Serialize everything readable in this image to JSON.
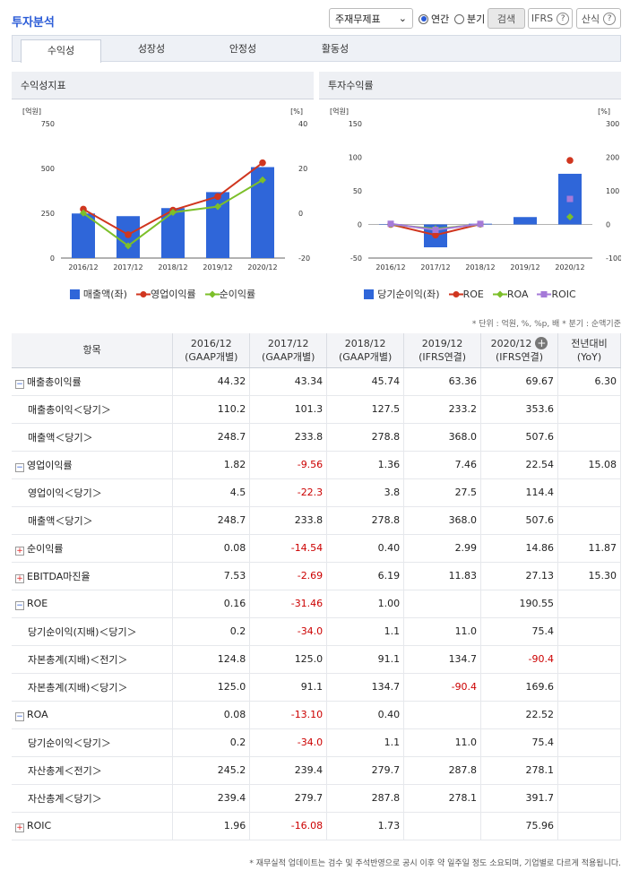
{
  "header": {
    "title": "투자분석",
    "select_value": "주재무제표",
    "radio_annual": "연간",
    "radio_quarter": "분기",
    "search_label": "검색",
    "ifrs_label": "IFRS",
    "calc_label": "산식",
    "q_glyph": "?"
  },
  "tabs": [
    "수익성",
    "성장성",
    "안정성",
    "활동성"
  ],
  "left_chart": {
    "title": "수익성지표",
    "left_unit": "[억원]",
    "right_unit": "[%]",
    "left_ticks": [
      "750",
      "500",
      "250",
      "0"
    ],
    "right_ticks": [
      "40",
      "20",
      "0",
      "-20"
    ],
    "legend": [
      "매출액(좌)",
      "영업이익률",
      "순이익률"
    ]
  },
  "right_chart": {
    "title": "투자수익률",
    "left_unit": "[억원]",
    "right_unit": "[%]",
    "left_ticks": [
      "150",
      "100",
      "50",
      "0",
      "-50"
    ],
    "right_ticks": [
      "300",
      "200",
      "100",
      "0",
      "-100"
    ],
    "legend": [
      "당기순이익(좌)",
      "ROE",
      "ROA",
      "ROIC"
    ]
  },
  "chart_data": [
    {
      "type": "bar",
      "title": "수익성지표",
      "categories": [
        "2016/12",
        "2017/12",
        "2018/12",
        "2019/12",
        "2020/12"
      ],
      "series": [
        {
          "name": "매출액(좌)",
          "values": [
            248.7,
            233.8,
            278.8,
            368.0,
            507.6
          ],
          "axis": "left"
        },
        {
          "name": "영업이익률",
          "values": [
            1.82,
            -9.56,
            1.36,
            7.46,
            22.54
          ],
          "axis": "right"
        },
        {
          "name": "순이익률",
          "values": [
            0.08,
            -14.54,
            0.4,
            2.99,
            14.86
          ],
          "axis": "right"
        }
      ],
      "ylim_left": [
        0,
        750
      ],
      "ylim_right": [
        -20,
        40
      ]
    },
    {
      "type": "bar",
      "title": "투자수익률",
      "categories": [
        "2016/12",
        "2017/12",
        "2018/12",
        "2019/12",
        "2020/12"
      ],
      "series": [
        {
          "name": "당기순이익(좌)",
          "values": [
            0.2,
            -34.0,
            1.1,
            11.0,
            75.4
          ],
          "axis": "left"
        },
        {
          "name": "ROE",
          "values": [
            0.16,
            -31.46,
            1.0,
            null,
            190.55
          ],
          "axis": "right"
        },
        {
          "name": "ROA",
          "values": [
            0.08,
            -13.1,
            0.4,
            null,
            22.52
          ],
          "axis": "right"
        },
        {
          "name": "ROIC",
          "values": [
            1.96,
            -16.08,
            1.73,
            null,
            75.96
          ],
          "axis": "right"
        }
      ],
      "ylim_left": [
        -50,
        150
      ],
      "ylim_right": [
        -100,
        300
      ]
    }
  ],
  "colors": {
    "bar": "#2f66d9",
    "op": "#d0361f",
    "net": "#7cbf2a",
    "roic": "#a57ad8"
  },
  "unit_note": "* 단위 : 억원, %, %p, 배   * 분기 : 순액기준",
  "table": {
    "header": [
      "항목",
      "2016/12\n(GAAP개별)",
      "2017/12\n(GAAP개별)",
      "2018/12\n(GAAP개별)",
      "2019/12\n(IFRS연결)",
      "2020/12\n(IFRS연결)",
      "전년대비\n(YoY)"
    ],
    "expand_glyph": "+",
    "rows": [
      {
        "label": "매출총이익률",
        "icon": "minus",
        "vals": [
          "44.32",
          "43.34",
          "45.74",
          "63.36",
          "69.67",
          "6.30"
        ]
      },
      {
        "label": "매출총이익＜당기＞",
        "sub": true,
        "vals": [
          "110.2",
          "101.3",
          "127.5",
          "233.2",
          "353.6",
          ""
        ]
      },
      {
        "label": "매출액＜당기＞",
        "sub": true,
        "vals": [
          "248.7",
          "233.8",
          "278.8",
          "368.0",
          "507.6",
          ""
        ]
      },
      {
        "label": "영업이익률",
        "icon": "minus",
        "vals": [
          "1.82",
          "-9.56",
          "1.36",
          "7.46",
          "22.54",
          "15.08"
        ]
      },
      {
        "label": "영업이익＜당기＞",
        "sub": true,
        "vals": [
          "4.5",
          "-22.3",
          "3.8",
          "27.5",
          "114.4",
          ""
        ]
      },
      {
        "label": "매출액＜당기＞",
        "sub": true,
        "vals": [
          "248.7",
          "233.8",
          "278.8",
          "368.0",
          "507.6",
          ""
        ]
      },
      {
        "label": "순이익률",
        "icon": "plus",
        "vals": [
          "0.08",
          "-14.54",
          "0.40",
          "2.99",
          "14.86",
          "11.87"
        ]
      },
      {
        "label": "EBITDA마진율",
        "icon": "plus",
        "vals": [
          "7.53",
          "-2.69",
          "6.19",
          "11.83",
          "27.13",
          "15.30"
        ]
      },
      {
        "label": "ROE",
        "icon": "minus",
        "vals": [
          "0.16",
          "-31.46",
          "1.00",
          "",
          "190.55",
          ""
        ]
      },
      {
        "label": "당기순이익(지배)＜당기＞",
        "sub": true,
        "vals": [
          "0.2",
          "-34.0",
          "1.1",
          "11.0",
          "75.4",
          ""
        ]
      },
      {
        "label": "자본총계(지배)＜전기＞",
        "sub": true,
        "vals": [
          "124.8",
          "125.0",
          "91.1",
          "134.7",
          "-90.4",
          ""
        ]
      },
      {
        "label": "자본총계(지배)＜당기＞",
        "sub": true,
        "vals": [
          "125.0",
          "91.1",
          "134.7",
          "-90.4",
          "169.6",
          ""
        ]
      },
      {
        "label": "ROA",
        "icon": "minus",
        "vals": [
          "0.08",
          "-13.10",
          "0.40",
          "",
          "22.52",
          ""
        ]
      },
      {
        "label": "당기순이익＜당기＞",
        "sub": true,
        "vals": [
          "0.2",
          "-34.0",
          "1.1",
          "11.0",
          "75.4",
          ""
        ]
      },
      {
        "label": "자산총계＜전기＞",
        "sub": true,
        "vals": [
          "245.2",
          "239.4",
          "279.7",
          "287.8",
          "278.1",
          ""
        ]
      },
      {
        "label": "자산총계＜당기＞",
        "sub": true,
        "vals": [
          "239.4",
          "279.7",
          "287.8",
          "278.1",
          "391.7",
          ""
        ]
      },
      {
        "label": "ROIC",
        "icon": "plus",
        "vals": [
          "1.96",
          "-16.08",
          "1.73",
          "",
          "75.96",
          ""
        ]
      }
    ]
  },
  "footer": "* 재무실적 업데이트는 검수 및 주석반영으로 공시 이후 약 일주일 정도 소요되며, 기업별로 다르게 적용됩니다."
}
